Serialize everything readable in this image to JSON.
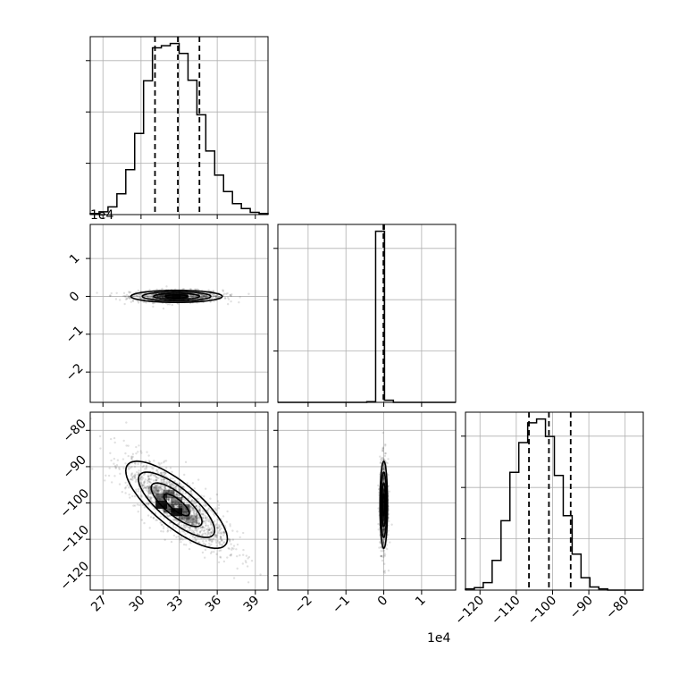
{
  "chart_data": {
    "type": "corner",
    "offset_label": "1e4",
    "colors": {
      "line": "#000000",
      "grid": "#b0b0b0",
      "points": "#000000"
    },
    "grid": true,
    "parameters": [
      {
        "index": 0,
        "axis_range": [
          26,
          40
        ],
        "ticks": [
          27,
          30,
          33,
          36,
          39
        ],
        "tick_labels": [
          "27",
          "30",
          "33",
          "36",
          "39"
        ]
      },
      {
        "index": 1,
        "scale": "1e4",
        "axis_range": [
          -2.8,
          1.9
        ],
        "ticks": [
          -2,
          -1,
          0,
          1
        ],
        "tick_labels": [
          "−2",
          "−1",
          "0",
          "1"
        ]
      },
      {
        "index": 2,
        "axis_range": [
          -124,
          -75
        ],
        "ticks": [
          -120,
          -110,
          -100,
          -90,
          -80
        ],
        "tick_labels": [
          "−120",
          "−110",
          "−100",
          "−90",
          "−80"
        ]
      }
    ],
    "histograms": [
      {
        "param": 0,
        "bin_edges": [
          26,
          26.7,
          27.4,
          28.1,
          28.8,
          29.5,
          30.2,
          30.9,
          31.6,
          32.3,
          33.0,
          33.7,
          34.4,
          35.1,
          35.8,
          36.5,
          37.2,
          37.9,
          38.6,
          39.3,
          40
        ],
        "counts": [
          2,
          5,
          14,
          38,
          82,
          148,
          244,
          304,
          308,
          312,
          294,
          245,
          182,
          116,
          72,
          42,
          20,
          11,
          4,
          2
        ],
        "quantiles": [
          31.1,
          32.9,
          34.6
        ]
      },
      {
        "param": 1,
        "bin_edges": [
          -2.8,
          -2.565,
          -2.33,
          -2.095,
          -1.86,
          -1.625,
          -1.39,
          -1.155,
          -0.92,
          -0.685,
          -0.45,
          -0.215,
          0.02,
          0.255,
          0.49,
          0.725,
          0.96,
          1.195,
          1.43,
          1.665,
          1.9
        ],
        "counts": [
          0,
          0,
          0,
          0,
          0,
          0,
          0,
          0,
          0,
          0,
          4,
          980,
          12,
          0,
          0,
          0,
          0,
          0,
          0,
          0
        ],
        "quantiles": [
          -0.01,
          0.0,
          0.01
        ]
      },
      {
        "param": 2,
        "bin_edges": [
          -124,
          -121.55,
          -119.1,
          -116.65,
          -114.2,
          -111.75,
          -109.3,
          -106.85,
          -104.4,
          -101.95,
          -99.5,
          -97.05,
          -94.6,
          -92.15,
          -89.7,
          -87.25,
          -84.8,
          -82.35,
          -79.9,
          -77.45,
          -75
        ],
        "counts": [
          2,
          4,
          12,
          48,
          112,
          190,
          238,
          270,
          276,
          248,
          185,
          120,
          58,
          20,
          5,
          2,
          0,
          0,
          0,
          0
        ],
        "quantiles": [
          -106.5,
          -101.0,
          -95.0
        ]
      }
    ],
    "scatter_panels": [
      {
        "x_param": 0,
        "y_param": 1,
        "center": [
          32.8,
          0.0
        ],
        "spread": [
          1.8,
          0.08
        ],
        "corr": 0.0,
        "n": 900
      },
      {
        "x_param": 0,
        "y_param": 2,
        "center": [
          32.8,
          -100.5
        ],
        "spread": [
          2.0,
          6.0
        ],
        "corr": -0.78,
        "n": 1500
      },
      {
        "x_param": 1,
        "y_param": 2,
        "center": [
          0.0,
          -100.5
        ],
        "spread": [
          0.05,
          6.0
        ],
        "corr": 0.0,
        "n": 900
      }
    ]
  }
}
